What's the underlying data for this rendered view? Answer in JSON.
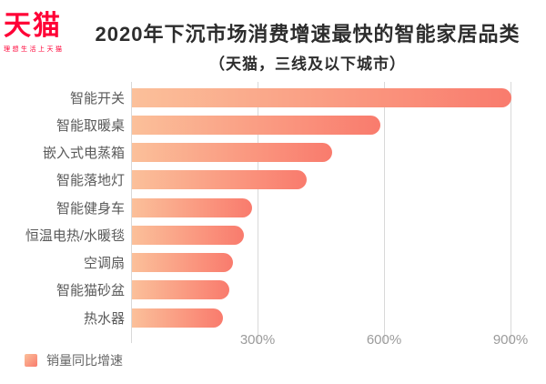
{
  "logo": {
    "brand": "天猫",
    "tagline": "理想生活上天猫",
    "color": "#ff0036"
  },
  "header": {
    "title": "2020年下沉市场消费增速最快的智能家居品类",
    "subtitle": "（天猫，三线及以下城市）"
  },
  "chart_data": {
    "type": "bar",
    "orientation": "horizontal",
    "title": "2020年下沉市场消费增速最快的智能家居品类",
    "subtitle": "（天猫，三线及以下城市）",
    "categories": [
      "智能开关",
      "智能取暖桌",
      "嵌入式电蒸箱",
      "智能落地灯",
      "智能健身车",
      "恒温电热/水暖毯",
      "空调扇",
      "智能猫砂盆",
      "热水器"
    ],
    "values": [
      900,
      590,
      475,
      415,
      285,
      265,
      240,
      230,
      215
    ],
    "unit": "%",
    "xlim": [
      0,
      900
    ],
    "x_tick_values": [
      0,
      300,
      600,
      900
    ],
    "x_tick_labels": [
      "",
      "300%",
      "600%",
      "900%"
    ],
    "grid": "vertical",
    "legend": "销量同比增速",
    "legend_position": "bottom-left",
    "bar_color_start": "#fbc09a",
    "bar_color_end": "#f97b6d",
    "gridline_color": "#d9d9d9"
  }
}
